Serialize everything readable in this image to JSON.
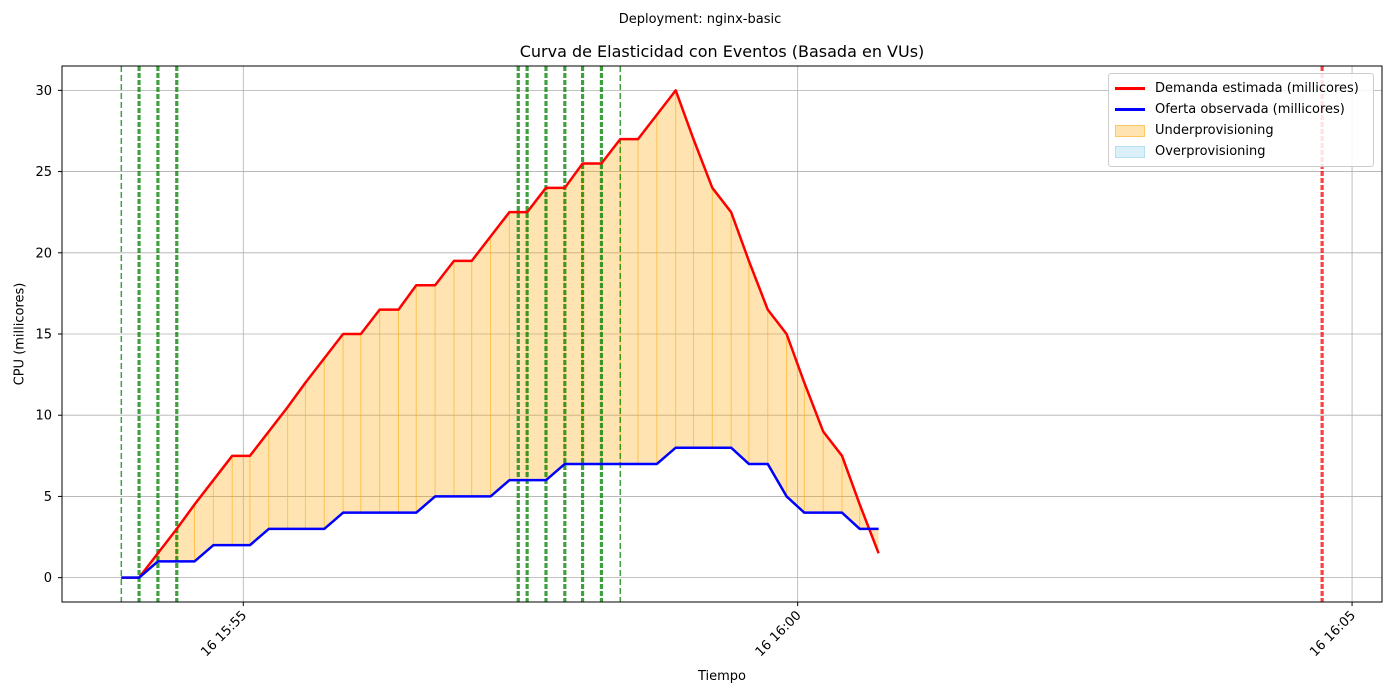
{
  "suptitle": "Deployment: nginx-basic",
  "chart_data": {
    "type": "line",
    "title": "Curva de Elasticidad con Eventos (Basada en VUs)",
    "xlabel": "Tiempo",
    "ylabel": "CPU (millicores)",
    "x_unit": "minutes",
    "x_tick_values": [
      55,
      60,
      65
    ],
    "x_tick_labels": [
      "16 15:55",
      "16 16:00",
      "16 16:05"
    ],
    "xlim": [
      53.365,
      65.27
    ],
    "y_ticks": [
      0,
      5,
      10,
      15,
      20,
      25,
      30
    ],
    "ylim": [
      -1.5,
      31.5
    ],
    "grid": true,
    "legend_position": "top-right",
    "series": [
      {
        "name": "Demanda estimada (millicores)",
        "color": "#ff0000",
        "points": [
          [
            53.9,
            0
          ],
          [
            54.06,
            0
          ],
          [
            54.23,
            1.5
          ],
          [
            54.4,
            3
          ],
          [
            54.56,
            4.5
          ],
          [
            54.73,
            6
          ],
          [
            54.9,
            7.5
          ],
          [
            55.06,
            7.5
          ],
          [
            55.23,
            9
          ],
          [
            55.4,
            10.5
          ],
          [
            55.56,
            12
          ],
          [
            55.73,
            13.5
          ],
          [
            55.9,
            15
          ],
          [
            56.06,
            15
          ],
          [
            56.23,
            16.5
          ],
          [
            56.4,
            16.5
          ],
          [
            56.56,
            18
          ],
          [
            56.73,
            18
          ],
          [
            56.9,
            19.5
          ],
          [
            57.06,
            19.5
          ],
          [
            57.23,
            21
          ],
          [
            57.4,
            22.5
          ],
          [
            57.56,
            22.5
          ],
          [
            57.73,
            24
          ],
          [
            57.9,
            24
          ],
          [
            58.06,
            25.5
          ],
          [
            58.23,
            25.5
          ],
          [
            58.4,
            27
          ],
          [
            58.56,
            27
          ],
          [
            58.73,
            28.5
          ],
          [
            58.9,
            30
          ],
          [
            59.06,
            27
          ],
          [
            59.23,
            24
          ],
          [
            59.4,
            22.5
          ],
          [
            59.56,
            19.5
          ],
          [
            59.73,
            16.5
          ],
          [
            59.9,
            15
          ],
          [
            60.06,
            12
          ],
          [
            60.23,
            9
          ],
          [
            60.4,
            7.5
          ],
          [
            60.56,
            4.5
          ],
          [
            60.73,
            1.5
          ]
        ]
      },
      {
        "name": "Oferta observada (millicores)",
        "color": "#0000ff",
        "points": [
          [
            53.9,
            0
          ],
          [
            54.06,
            0
          ],
          [
            54.23,
            1
          ],
          [
            54.4,
            1
          ],
          [
            54.56,
            1
          ],
          [
            54.73,
            2
          ],
          [
            54.9,
            2
          ],
          [
            55.06,
            2
          ],
          [
            55.23,
            3
          ],
          [
            55.4,
            3
          ],
          [
            55.56,
            3
          ],
          [
            55.73,
            3
          ],
          [
            55.9,
            4
          ],
          [
            56.06,
            4
          ],
          [
            56.23,
            4
          ],
          [
            56.4,
            4
          ],
          [
            56.56,
            4
          ],
          [
            56.73,
            5
          ],
          [
            56.9,
            5
          ],
          [
            57.06,
            5
          ],
          [
            57.23,
            5
          ],
          [
            57.4,
            6
          ],
          [
            57.56,
            6
          ],
          [
            57.73,
            6
          ],
          [
            57.9,
            7
          ],
          [
            58.06,
            7
          ],
          [
            58.23,
            7
          ],
          [
            58.4,
            7
          ],
          [
            58.56,
            7
          ],
          [
            58.73,
            7
          ],
          [
            58.9,
            8
          ],
          [
            59.06,
            8
          ],
          [
            59.23,
            8
          ],
          [
            59.4,
            8
          ],
          [
            59.56,
            7
          ],
          [
            59.73,
            7
          ],
          [
            59.9,
            5
          ],
          [
            60.06,
            4
          ],
          [
            60.23,
            4
          ],
          [
            60.4,
            4
          ],
          [
            60.56,
            3
          ],
          [
            60.73,
            3
          ]
        ]
      }
    ],
    "fills": [
      {
        "name": "Underprovisioning",
        "color": "#ffa500"
      },
      {
        "name": "Overprovisioning",
        "color": "#87ceeb"
      }
    ],
    "events": [
      {
        "x": 53.9,
        "color": "#008000",
        "style": "thin"
      },
      {
        "x": 54.06,
        "color": "#008000",
        "style": "thick"
      },
      {
        "x": 54.23,
        "color": "#008000",
        "style": "thick"
      },
      {
        "x": 54.4,
        "color": "#008000",
        "style": "thick"
      },
      {
        "x": 57.48,
        "color": "#008000",
        "style": "thick"
      },
      {
        "x": 57.56,
        "color": "#008000",
        "style": "thick"
      },
      {
        "x": 57.73,
        "color": "#008000",
        "style": "thick"
      },
      {
        "x": 57.9,
        "color": "#008000",
        "style": "thick"
      },
      {
        "x": 58.06,
        "color": "#008000",
        "style": "thick"
      },
      {
        "x": 58.23,
        "color": "#008000",
        "style": "thick"
      },
      {
        "x": 58.4,
        "color": "#008000",
        "style": "thin"
      },
      {
        "x": 64.73,
        "color": "#ff0000",
        "style": "thick"
      }
    ]
  }
}
